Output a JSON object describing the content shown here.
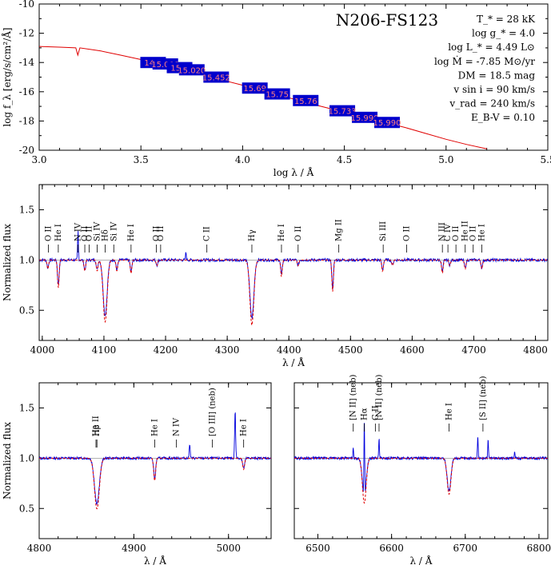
{
  "colors": {
    "model": "#e00000",
    "observed": "#0000dd",
    "box": "#0000cc",
    "box_text": "#ff8a8a",
    "continuum": "#999999"
  },
  "sed_panel": {
    "object_name": "N206-FS123",
    "parameters": [
      "T_* = 28 kK",
      "log g_* = 4.0",
      "log L_* = 4.49 L⊙",
      "log Ṁ = -7.85 M⊙/yr",
      "DM = 18.5 mag",
      "v sin i = 90 km/s",
      "v_rad = 240 km/s",
      "E_B-V = 0.10"
    ],
    "xlabel": "log λ / Å",
    "ylabel": "log f_λ [erg/s/cm²/Å]",
    "xticks": [
      "3.0",
      "3.5",
      "4.0",
      "4.5",
      "5.0",
      "5.5"
    ],
    "yticks": [
      "-10",
      "-12",
      "-14",
      "-16",
      "-18",
      "-20"
    ]
  },
  "spec_panel": {
    "ylabel": "Normalized flux",
    "xlabel": "λ / Å",
    "xticks": [
      "4000",
      "4100",
      "4200",
      "4300",
      "4400",
      "4500",
      "4600",
      "4700",
      "4800"
    ],
    "yticks": [
      "0.5",
      "1.0",
      "1.5"
    ]
  },
  "bl_panel": {
    "ylabel": "Normalized flux",
    "xlabel": "λ / Å",
    "xticks": [
      "4800",
      "4900",
      "5000"
    ],
    "yticks": [
      "0.5",
      "1.0",
      "1.5"
    ]
  },
  "br_panel": {
    "xlabel": "λ / Å",
    "xticks": [
      "6500",
      "6600",
      "6700",
      "6800"
    ]
  },
  "chart_data": [
    {
      "type": "line",
      "panel": "sed",
      "xlim": [
        3.0,
        5.5
      ],
      "ylim": [
        -20,
        -10
      ],
      "series": [
        {
          "x": [
            3.0,
            3.1,
            3.18,
            3.19,
            3.2,
            3.3,
            3.4,
            3.5,
            3.6,
            3.7,
            3.8,
            3.9,
            4.0,
            4.1,
            4.2,
            4.3,
            4.4,
            4.5,
            4.6,
            4.7,
            4.8,
            4.9,
            5.0,
            5.1,
            5.2
          ],
          "y": [
            -12.9,
            -12.95,
            -13.0,
            -13.5,
            -13.0,
            -13.2,
            -13.5,
            -13.8,
            -14.1,
            -14.45,
            -14.8,
            -15.2,
            -15.55,
            -15.95,
            -16.3,
            -16.7,
            -17.05,
            -17.4,
            -17.75,
            -18.1,
            -18.45,
            -18.85,
            -19.25,
            -19.6,
            -19.9
          ]
        }
      ],
      "photometry": [
        {
          "x": 3.56,
          "y": -14.0,
          "label": "14.8"
        },
        {
          "x": 3.62,
          "y": -14.1,
          "label": "15.008"
        },
        {
          "x": 3.69,
          "y": -14.35,
          "label": "15.1"
        },
        {
          "x": 3.75,
          "y": -14.5,
          "label": "15.020"
        },
        {
          "x": 3.87,
          "y": -15.0,
          "label": "15.452"
        },
        {
          "x": 4.06,
          "y": -15.75,
          "label": "15.69"
        },
        {
          "x": 4.17,
          "y": -16.15,
          "label": "15.75"
        },
        {
          "x": 4.31,
          "y": -16.6,
          "label": "15.76"
        },
        {
          "x": 4.49,
          "y": -17.3,
          "label": "15.733"
        },
        {
          "x": 4.6,
          "y": -17.75,
          "label": "15.990"
        },
        {
          "x": 4.71,
          "y": -18.1,
          "label": "15.990"
        }
      ]
    },
    {
      "type": "line",
      "panel": "spectrum-blue",
      "xlim": [
        3995,
        4820
      ],
      "ylim": [
        0.2,
        1.75
      ],
      "absorption_lines": [
        {
          "x": 4009,
          "depth": 0.08
        },
        {
          "x": 4026,
          "depth": 0.25
        },
        {
          "x": 4069,
          "depth": 0.1
        },
        {
          "x": 4089,
          "depth": 0.1
        },
        {
          "x": 4102,
          "depth": 0.55
        },
        {
          "x": 4121,
          "depth": 0.1
        },
        {
          "x": 4144,
          "depth": 0.12
        },
        {
          "x": 4186,
          "depth": 0.05
        },
        {
          "x": 4340,
          "depth": 0.58
        },
        {
          "x": 4388,
          "depth": 0.15
        },
        {
          "x": 4415,
          "depth": 0.05
        },
        {
          "x": 4471,
          "depth": 0.28
        },
        {
          "x": 4552,
          "depth": 0.1
        },
        {
          "x": 4568,
          "depth": 0.05
        },
        {
          "x": 4649,
          "depth": 0.12
        },
        {
          "x": 4661,
          "depth": 0.05
        },
        {
          "x": 4686,
          "depth": 0.08
        },
        {
          "x": 4713,
          "depth": 0.08
        }
      ],
      "emission_lines": [
        {
          "x": 4058,
          "height": 0.3
        },
        {
          "x": 4233,
          "height": 0.08
        }
      ],
      "line_ids": [
        {
          "x": 4010,
          "label": "O II"
        },
        {
          "x": 4026,
          "label": "He I"
        },
        {
          "x": 4058,
          "label": "N IV"
        },
        {
          "x": 4069,
          "label": "O II"
        },
        {
          "x": 4076,
          "label": "O II"
        },
        {
          "x": 4089,
          "label": "Si IV"
        },
        {
          "x": 4102,
          "label": "Hδ"
        },
        {
          "x": 4116,
          "label": "Si IV"
        },
        {
          "x": 4144,
          "label": "He I"
        },
        {
          "x": 4185,
          "label": "O II"
        },
        {
          "x": 4192,
          "label": "O II"
        },
        {
          "x": 4267,
          "label": "C II"
        },
        {
          "x": 4340,
          "label": "Hγ"
        },
        {
          "x": 4388,
          "label": "He I"
        },
        {
          "x": 4415,
          "label": "O II"
        },
        {
          "x": 4481,
          "label": "Mg II"
        },
        {
          "x": 4553,
          "label": "Si III"
        },
        {
          "x": 4591,
          "label": "O II"
        },
        {
          "x": 4649,
          "label": "N III"
        },
        {
          "x": 4658,
          "label": "C IV"
        },
        {
          "x": 4671,
          "label": "O II"
        },
        {
          "x": 4686,
          "label": "He II"
        },
        {
          "x": 4699,
          "label": "O II"
        },
        {
          "x": 4713,
          "label": "He I"
        }
      ]
    },
    {
      "type": "line",
      "panel": "spectrum-hbeta",
      "xlim": [
        4800,
        5045
      ],
      "ylim": [
        0.2,
        1.75
      ],
      "absorption_lines": [
        {
          "x": 4861,
          "depth": 0.45
        },
        {
          "x": 4922,
          "depth": 0.2
        },
        {
          "x": 5016,
          "depth": 0.1
        }
      ],
      "emission_lines": [
        {
          "x": 4959,
          "height": 0.15
        },
        {
          "x": 5007,
          "height": 0.48
        }
      ],
      "line_ids": [
        {
          "x": 4860,
          "label": "He II"
        },
        {
          "x": 4861,
          "label": "Hβ"
        },
        {
          "x": 4922,
          "label": "He I"
        },
        {
          "x": 4945,
          "label": "N IV"
        },
        {
          "x": 4983,
          "label": "[O III] (neb)"
        },
        {
          "x": 5016,
          "label": "He I"
        }
      ]
    },
    {
      "type": "line",
      "panel": "spectrum-halpha",
      "xlim": [
        6468,
        6812
      ],
      "ylim": [
        0.2,
        1.75
      ],
      "absorption_lines": [
        {
          "x": 6563,
          "depth": 0.4
        },
        {
          "x": 6678,
          "depth": 0.32
        }
      ],
      "emission_lines": [
        {
          "x": 6548,
          "height": 0.1
        },
        {
          "x": 6563,
          "height": 0.8
        },
        {
          "x": 6583,
          "height": 0.2
        },
        {
          "x": 6717,
          "height": 0.22
        },
        {
          "x": 6731,
          "height": 0.18
        },
        {
          "x": 6767,
          "height": 0.06
        }
      ],
      "line_ids": [
        {
          "x": 6548,
          "label": "[N II] (neb)"
        },
        {
          "x": 6563,
          "label": "Hα"
        },
        {
          "x": 6578,
          "label": "C II"
        },
        {
          "x": 6583,
          "label": "[N II] (neb)"
        },
        {
          "x": 6678,
          "label": "He I"
        },
        {
          "x": 6724,
          "label": "[S II] (neb)"
        }
      ]
    }
  ]
}
